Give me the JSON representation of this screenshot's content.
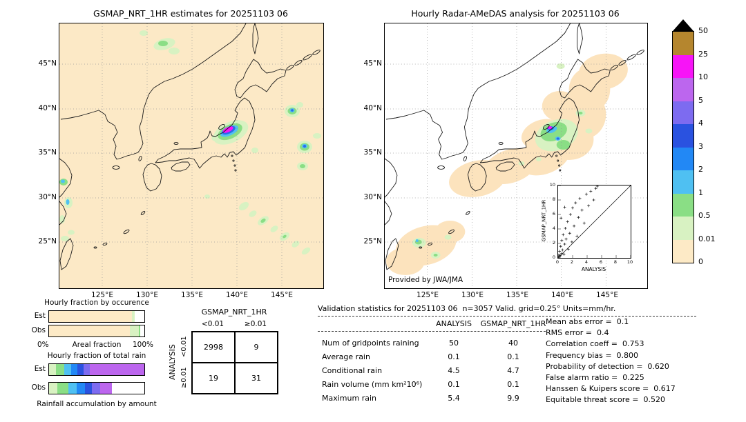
{
  "left_map": {
    "title": "GSMAP_NRT_1HR estimates for 20251103 06",
    "lat_ticks": [
      "45°N",
      "40°N",
      "35°N",
      "30°N",
      "25°N"
    ],
    "lon_ticks": [
      "125°E",
      "130°E",
      "135°E",
      "140°E",
      "145°E"
    ]
  },
  "right_map": {
    "title": "Hourly Radar-AMeDAS analysis for 20251103 06",
    "lat_ticks": [
      "45°N",
      "40°N",
      "35°N",
      "30°N",
      "25°N"
    ],
    "lon_ticks": [
      "125°E",
      "130°E",
      "135°E",
      "140°E",
      "145°E"
    ],
    "credit": "Provided by JWA/JMA",
    "inset": {
      "xlabel": "ANALYSIS",
      "ylabel": "GSMAP_NRT_1HR",
      "ticks": [
        "0",
        "2",
        "4",
        "6",
        "8",
        "10"
      ],
      "points": [
        [
          0.05,
          0.1
        ],
        [
          0.1,
          0.4
        ],
        [
          0.2,
          0.15
        ],
        [
          0.2,
          0.9
        ],
        [
          0.3,
          0.3
        ],
        [
          0.35,
          1.6
        ],
        [
          0.5,
          0.6
        ],
        [
          0.5,
          2.4
        ],
        [
          0.6,
          1.1
        ],
        [
          0.7,
          3.2
        ],
        [
          0.8,
          0.5
        ],
        [
          0.9,
          1.9
        ],
        [
          1.0,
          4.1
        ],
        [
          1.1,
          2.6
        ],
        [
          1.3,
          5.0
        ],
        [
          1.4,
          1.2
        ],
        [
          1.6,
          3.4
        ],
        [
          1.7,
          6.0
        ],
        [
          1.9,
          2.2
        ],
        [
          2.0,
          6.9
        ],
        [
          2.2,
          4.4
        ],
        [
          2.4,
          7.6
        ],
        [
          2.6,
          3.0
        ],
        [
          2.8,
          5.6
        ],
        [
          3.0,
          8.2
        ],
        [
          3.3,
          6.6
        ],
        [
          3.6,
          4.8
        ],
        [
          3.9,
          8.8
        ],
        [
          4.2,
          7.2
        ],
        [
          4.5,
          9.2
        ],
        [
          4.9,
          8.0
        ],
        [
          5.2,
          9.6
        ],
        [
          5.4,
          9.9
        ],
        [
          0.4,
          5.5
        ],
        [
          0.9,
          7.0
        ]
      ]
    }
  },
  "colorbar": {
    "units": "mm/hr",
    "labels": [
      "50",
      "25",
      "10",
      "5",
      "4",
      "3",
      "2",
      "1",
      "0.5",
      "0.01",
      "0"
    ],
    "overflow_color": "#000000",
    "segments": [
      {
        "range": "25-50",
        "color": "#b5862e"
      },
      {
        "range": "10-25",
        "color": "#f714f7"
      },
      {
        "range": "5-10",
        "color": "#bc66ee"
      },
      {
        "range": "4-5",
        "color": "#7d6bf0"
      },
      {
        "range": "3-4",
        "color": "#2a52e0"
      },
      {
        "range": "2-3",
        "color": "#2288f5"
      },
      {
        "range": "1-2",
        "color": "#4fc0f2"
      },
      {
        "range": "0.5-1",
        "color": "#8ade85"
      },
      {
        "range": "0.01-0.5",
        "color": "#d8f2c2"
      },
      {
        "range": "0-0.01",
        "color": "#fdeac6"
      }
    ]
  },
  "occurrence_chart": {
    "title": "Hourly fraction by occurence",
    "row_labels": [
      "Est",
      "Obs"
    ],
    "axis_left": "0%",
    "axis_label": "Areal fraction",
    "axis_right": "100%"
  },
  "totalrain_chart": {
    "title": "Hourly fraction of total rain",
    "row_labels": [
      "Est",
      "Obs"
    ],
    "caption": "Rainfall accumulation by amount"
  },
  "bars": {
    "occ_est": {
      "segments": [
        {
          "color": "#fdeac6",
          "pct": 87
        },
        {
          "color": "#d8f2c2",
          "pct": 3
        },
        {
          "color": "#ffffff",
          "pct": 10
        }
      ]
    },
    "occ_obs": {
      "segments": [
        {
          "color": "#fdeac6",
          "pct": 85
        },
        {
          "color": "#d8f2c2",
          "pct": 9
        },
        {
          "color": "#8ade85",
          "pct": 2
        },
        {
          "color": "#ffffff",
          "pct": 4
        }
      ]
    },
    "rain_est": {
      "segments": [
        {
          "color": "#d8f2c2",
          "pct": 7
        },
        {
          "color": "#8ade85",
          "pct": 9
        },
        {
          "color": "#4fc0f2",
          "pct": 7
        },
        {
          "color": "#2288f5",
          "pct": 7
        },
        {
          "color": "#2a52e0",
          "pct": 6
        },
        {
          "color": "#7d6bf0",
          "pct": 7
        },
        {
          "color": "#bc66ee",
          "pct": 57
        }
      ]
    },
    "rain_obs": {
      "segments": [
        {
          "color": "#d8f2c2",
          "pct": 9
        },
        {
          "color": "#8ade85",
          "pct": 11
        },
        {
          "color": "#4fc0f2",
          "pct": 9
        },
        {
          "color": "#2288f5",
          "pct": 9
        },
        {
          "color": "#2a52e0",
          "pct": 7
        },
        {
          "color": "#7d6bf0",
          "pct": 9
        },
        {
          "color": "#bc66ee",
          "pct": 12
        },
        {
          "color": "#ffffff",
          "pct": 34
        }
      ]
    }
  },
  "contingency": {
    "title": "GSMAP_NRT_1HR",
    "col_labels": [
      "<0.01",
      "≥0.01"
    ],
    "row_axis": "ANALYSIS",
    "row_labels": [
      "<0.01",
      "≥0.01"
    ],
    "values": [
      [
        "2998",
        "9"
      ],
      [
        "19",
        "31"
      ]
    ]
  },
  "stats": {
    "header": "Validation statistics for 20251103 06  n=3057 Valid. grid=0.25° Units=mm/hr.",
    "col_headers": [
      "ANALYSIS",
      "GSMAP_NRT_1HR"
    ],
    "rows": [
      {
        "label": "Num of gridpoints raining",
        "analysis": "50",
        "gsmap": "40"
      },
      {
        "label": "Average rain",
        "analysis": "0.1",
        "gsmap": "0.1"
      },
      {
        "label": "Conditional rain",
        "analysis": "4.5",
        "gsmap": "4.7"
      },
      {
        "label": "Rain volume (mm km²10⁶)",
        "analysis": "0.1",
        "gsmap": "0.1"
      },
      {
        "label": "Maximum rain",
        "analysis": "5.4",
        "gsmap": "9.9"
      }
    ],
    "metrics": [
      {
        "label": "Mean abs error",
        "value": "0.1"
      },
      {
        "label": "RMS error",
        "value": "0.4"
      },
      {
        "label": "Correlation coeff",
        "value": "0.753"
      },
      {
        "label": "Frequency bias",
        "value": "0.800"
      },
      {
        "label": "Probability of detection",
        "value": "0.620"
      },
      {
        "label": "False alarm ratio",
        "value": "0.225"
      },
      {
        "label": "Hanssen & Kuipers score",
        "value": "0.617"
      },
      {
        "label": "Equitable threat score",
        "value": "0.520"
      }
    ]
  },
  "chart_data": [
    {
      "type": "heatmap",
      "title": "GSMAP_NRT_1HR estimates for 20251103 06",
      "units": "mm/hr",
      "x_range": [
        "120°E",
        "150°E"
      ],
      "y_range": [
        "20°N",
        "50°N"
      ],
      "color_scale_levels": [
        0,
        0.01,
        0.5,
        1,
        2,
        3,
        4,
        5,
        10,
        25,
        50
      ],
      "description": "Gridded hourly rain estimates over Japan; light rain patches offshore and an intense band (>10 mm/hr, magenta) near 37.5N 138E"
    },
    {
      "type": "heatmap",
      "title": "Hourly Radar-AMeDAS analysis for 20251103 06",
      "units": "mm/hr",
      "x_range": [
        "120°E",
        "150°E"
      ],
      "y_range": [
        "20°N",
        "50°N"
      ],
      "color_scale_levels": [
        0,
        0.01,
        0.5,
        1,
        2,
        3,
        4,
        5,
        10,
        25,
        50
      ],
      "description": "Radar-AMeDAS analysis; rain area limited to radar coverage along the Japanese islands with green/blue cells over central Honshu"
    },
    {
      "type": "scatter",
      "title": "GSMAP_NRT_1HR vs ANALYSIS (inset)",
      "xlabel": "ANALYSIS",
      "ylabel": "GSMAP_NRT_1HR",
      "xlim": [
        0,
        10
      ],
      "ylim": [
        0,
        10
      ],
      "diagonal": true,
      "points_ref": "right_map.inset.points"
    },
    {
      "type": "table",
      "title": "Contingency table",
      "columns": [
        "GSMAP<0.01",
        "GSMAP≥0.01"
      ],
      "rows": [
        {
          "label": "ANALYSIS<0.01",
          "values": [
            2998,
            9
          ]
        },
        {
          "label": "ANALYSIS≥0.01",
          "values": [
            19,
            31
          ]
        }
      ]
    },
    {
      "type": "table",
      "title": "Validation statistics",
      "columns": [
        "ANALYSIS",
        "GSMAP_NRT_1HR"
      ],
      "rows": [
        {
          "label": "Num of gridpoints raining",
          "values": [
            50,
            40
          ]
        },
        {
          "label": "Average rain",
          "values": [
            0.1,
            0.1
          ]
        },
        {
          "label": "Conditional rain",
          "values": [
            4.5,
            4.7
          ]
        },
        {
          "label": "Rain volume (mm km²10⁶)",
          "values": [
            0.1,
            0.1
          ]
        },
        {
          "label": "Maximum rain",
          "values": [
            5.4,
            9.9
          ]
        }
      ],
      "metrics": {
        "Mean abs error": 0.1,
        "RMS error": 0.4,
        "Correlation coeff": 0.753,
        "Frequency bias": 0.8,
        "Probability of detection": 0.62,
        "False alarm ratio": 0.225,
        "Hanssen & Kuipers score": 0.617,
        "Equitable threat score": 0.52
      }
    },
    {
      "type": "bar",
      "title": "Hourly fraction by occurence",
      "orientation": "horizontal",
      "stacked": true,
      "categories": [
        "Est",
        "Obs"
      ],
      "xlabel": "Areal fraction",
      "xlim_pct": [
        0,
        100
      ]
    },
    {
      "type": "bar",
      "title": "Hourly fraction of total rain",
      "orientation": "horizontal",
      "stacked": true,
      "categories": [
        "Est",
        "Obs"
      ],
      "note": "Rainfall accumulation by amount"
    }
  ]
}
